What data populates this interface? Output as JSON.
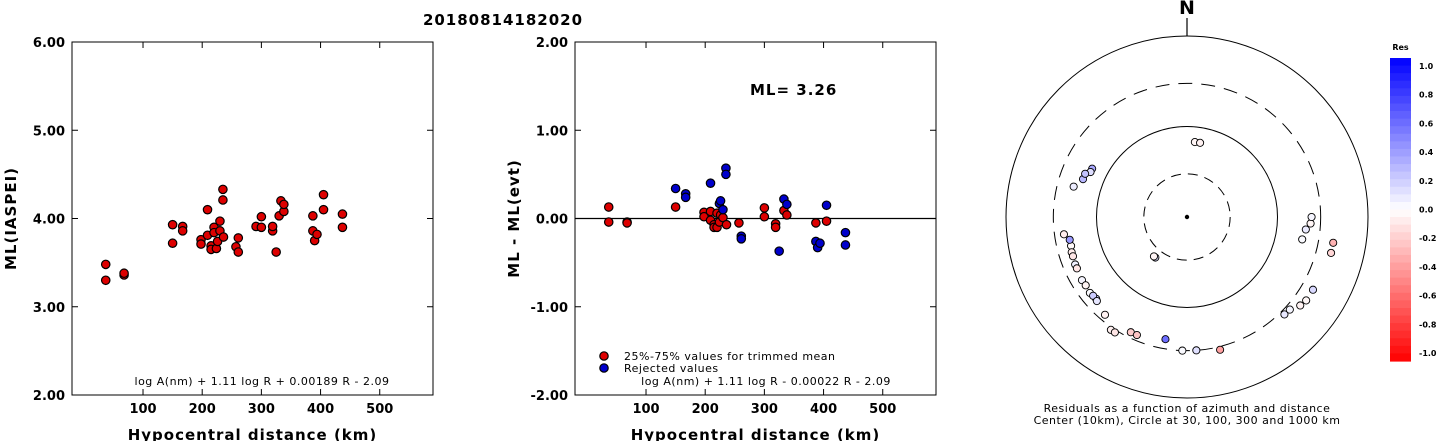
{
  "figure_title": "20180814182020",
  "chart_data": [
    {
      "type": "scatter",
      "ylabel": "ML(IASPEI)",
      "xlabel": "Hypocentral distance (km)",
      "xlim": [
        -20,
        590
      ],
      "ylim": [
        2.0,
        6.0
      ],
      "x_ticks": [
        "100",
        "200",
        "300",
        "400",
        "500"
      ],
      "y_ticks": [
        "2.00",
        "3.00",
        "4.00",
        "5.00",
        "6.00"
      ],
      "formula": "log A(nm) + 1.11 log R + 0.00189 R - 2.09",
      "series": [
        {
          "color": "#dd0000",
          "points": [
            [
              37,
              3.48
            ],
            [
              37,
              3.3
            ],
            [
              68,
              3.36
            ],
            [
              68,
              3.38
            ],
            [
              150,
              3.93
            ],
            [
              150,
              3.72
            ],
            [
              167,
              3.91
            ],
            [
              167,
              3.86
            ],
            [
              198,
              3.76
            ],
            [
              198,
              3.71
            ],
            [
              209,
              3.81
            ],
            [
              209,
              4.1
            ],
            [
              215,
              3.69
            ],
            [
              215,
              3.65
            ],
            [
              220,
              3.9
            ],
            [
              220,
              3.84
            ],
            [
              224,
              3.66
            ],
            [
              226,
              3.74
            ],
            [
              230,
              3.97
            ],
            [
              230,
              3.86
            ],
            [
              235,
              4.33
            ],
            [
              235,
              4.21
            ],
            [
              236,
              3.79
            ],
            [
              257,
              3.68
            ],
            [
              261,
              3.62
            ],
            [
              261,
              3.78
            ],
            [
              291,
              3.91
            ],
            [
              300,
              3.9
            ],
            [
              300,
              4.02
            ],
            [
              319,
              3.86
            ],
            [
              319,
              3.91
            ],
            [
              325,
              3.62
            ],
            [
              330,
              4.03
            ],
            [
              333,
              4.2
            ],
            [
              338,
              4.08
            ],
            [
              338,
              4.16
            ],
            [
              387,
              3.86
            ],
            [
              387,
              4.03
            ],
            [
              390,
              3.75
            ],
            [
              394,
              3.82
            ],
            [
              405,
              4.27
            ],
            [
              405,
              4.1
            ],
            [
              437,
              4.05
            ],
            [
              437,
              3.9
            ]
          ]
        }
      ]
    },
    {
      "type": "scatter",
      "ylabel": "ML - ML(evt)",
      "xlabel": "Hypocentral distance (km)",
      "xlim": [
        -20,
        590
      ],
      "ylim": [
        -2.0,
        2.0
      ],
      "x_ticks": [
        "100",
        "200",
        "300",
        "400",
        "500"
      ],
      "y_ticks": [
        "-2.00",
        "-1.00",
        "0.00",
        "1.00",
        "2.00"
      ],
      "annotation": "ML= 3.26",
      "formula": "log A(nm) + 1.11 log R - 0.00022 R - 2.09",
      "series": [
        {
          "name": "25%-75% values for trimmed mean",
          "color": "#dd0000",
          "points": [
            [
              37,
              0.13
            ],
            [
              37,
              -0.04
            ],
            [
              68,
              -0.04
            ],
            [
              68,
              -0.05
            ],
            [
              150,
              0.13
            ],
            [
              198,
              0.07
            ],
            [
              198,
              0.02
            ],
            [
              209,
              0.08
            ],
            [
              209,
              -0.02
            ],
            [
              215,
              -0.07
            ],
            [
              215,
              -0.1
            ],
            [
              220,
              0.06
            ],
            [
              220,
              -0.1
            ],
            [
              224,
              -0.04
            ],
            [
              226,
              0.04
            ],
            [
              230,
              0.01
            ],
            [
              236,
              -0.07
            ],
            [
              257,
              -0.05
            ],
            [
              300,
              0.02
            ],
            [
              300,
              0.12
            ],
            [
              319,
              -0.06
            ],
            [
              319,
              -0.1
            ],
            [
              333,
              0.09
            ],
            [
              338,
              0.04
            ],
            [
              387,
              -0.05
            ],
            [
              405,
              -0.03
            ]
          ]
        },
        {
          "name": "Rejected values",
          "color": "#0000cc",
          "points": [
            [
              150,
              0.34
            ],
            [
              167,
              0.28
            ],
            [
              167,
              0.24
            ],
            [
              209,
              0.4
            ],
            [
              224,
              0.17
            ],
            [
              226,
              0.2
            ],
            [
              230,
              0.1
            ],
            [
              235,
              0.57
            ],
            [
              235,
              0.5
            ],
            [
              261,
              -0.2
            ],
            [
              261,
              -0.23
            ],
            [
              325,
              -0.37
            ],
            [
              333,
              0.22
            ],
            [
              338,
              0.16
            ],
            [
              387,
              -0.26
            ],
            [
              390,
              -0.33
            ],
            [
              394,
              -0.28
            ],
            [
              405,
              0.15
            ],
            [
              437,
              -0.16
            ],
            [
              437,
              -0.3
            ]
          ]
        }
      ]
    },
    {
      "type": "polar-scatter",
      "north_label": "N",
      "caption_line1": "Residuals as a function of azimuth and distance",
      "caption_line2": "Center (10km), Circle at 30, 100, 300 and 1000 km",
      "colorbar": {
        "title": "Res",
        "ticks": [
          "1.0",
          "0.8",
          "0.6",
          "0.4",
          "0.2",
          "0.0",
          "-0.2",
          "-0.4",
          "-0.6",
          "-0.8",
          "-1.0"
        ],
        "positive_color": "#0000ff",
        "negative_color": "#ff0000"
      },
      "points": [
        {
          "az": 6,
          "dist": 68,
          "res": -0.04
        },
        {
          "az": 10,
          "dist": 68,
          "res": -0.05
        },
        {
          "az": 218,
          "dist": 37,
          "res": 0.13
        },
        {
          "az": 220,
          "dist": 37,
          "res": -0.04
        },
        {
          "az": 297,
          "dist": 150,
          "res": 0.34
        },
        {
          "az": 295,
          "dist": 150,
          "res": 0.13
        },
        {
          "az": 290,
          "dist": 167,
          "res": 0.28
        },
        {
          "az": 293,
          "dist": 167,
          "res": 0.24
        },
        {
          "az": 285,
          "dist": 198,
          "res": 0.07
        },
        {
          "az": 262,
          "dist": 236,
          "res": -0.07
        },
        {
          "az": 256,
          "dist": 209,
          "res": -0.02
        },
        {
          "az": 259,
          "dist": 209,
          "res": 0.4
        },
        {
          "az": 253,
          "dist": 215,
          "res": -0.07
        },
        {
          "az": 251,
          "dist": 215,
          "res": -0.1
        },
        {
          "az": 247,
          "dist": 220,
          "res": 0.06
        },
        {
          "az": 245,
          "dist": 220,
          "res": -0.1
        },
        {
          "az": 239,
          "dist": 226,
          "res": 0.04
        },
        {
          "az": 236,
          "dist": 224,
          "res": -0.04
        },
        {
          "az": 232,
          "dist": 230,
          "res": 0.01
        },
        {
          "az": 228,
          "dist": 224,
          "res": 0.17
        },
        {
          "az": 230,
          "dist": 226,
          "res": 0.2
        },
        {
          "az": 227,
          "dist": 230,
          "res": 0.1
        },
        {
          "az": 220,
          "dist": 257,
          "res": -0.05
        },
        {
          "az": 214,
          "dist": 319,
          "res": -0.06
        },
        {
          "az": 212,
          "dist": 319,
          "res": -0.1
        },
        {
          "az": 206,
          "dist": 261,
          "res": -0.2
        },
        {
          "az": 203,
          "dist": 261,
          "res": -0.23
        },
        {
          "az": 190,
          "dist": 235,
          "res": 0.57
        },
        {
          "az": 182,
          "dist": 300,
          "res": 0.02
        },
        {
          "az": 176,
          "dist": 300,
          "res": 0.12
        },
        {
          "az": 166,
          "dist": 325,
          "res": -0.37
        },
        {
          "az": 135,
          "dist": 333,
          "res": 0.09
        },
        {
          "az": 132,
          "dist": 338,
          "res": 0.04
        },
        {
          "az": 128,
          "dist": 387,
          "res": -0.05
        },
        {
          "az": 125,
          "dist": 405,
          "res": -0.03
        },
        {
          "az": 120,
          "dist": 405,
          "res": 0.15
        },
        {
          "az": 104,
          "dist": 437,
          "res": -0.16
        },
        {
          "az": 100,
          "dist": 437,
          "res": -0.3
        },
        {
          "az": 101,
          "dist": 198,
          "res": 0.02
        },
        {
          "az": 96,
          "dist": 209,
          "res": 0.08
        },
        {
          "az": 93,
          "dist": 233,
          "res": -0.04
        },
        {
          "az": 90,
          "dist": 238,
          "res": 0.04
        }
      ]
    }
  ]
}
